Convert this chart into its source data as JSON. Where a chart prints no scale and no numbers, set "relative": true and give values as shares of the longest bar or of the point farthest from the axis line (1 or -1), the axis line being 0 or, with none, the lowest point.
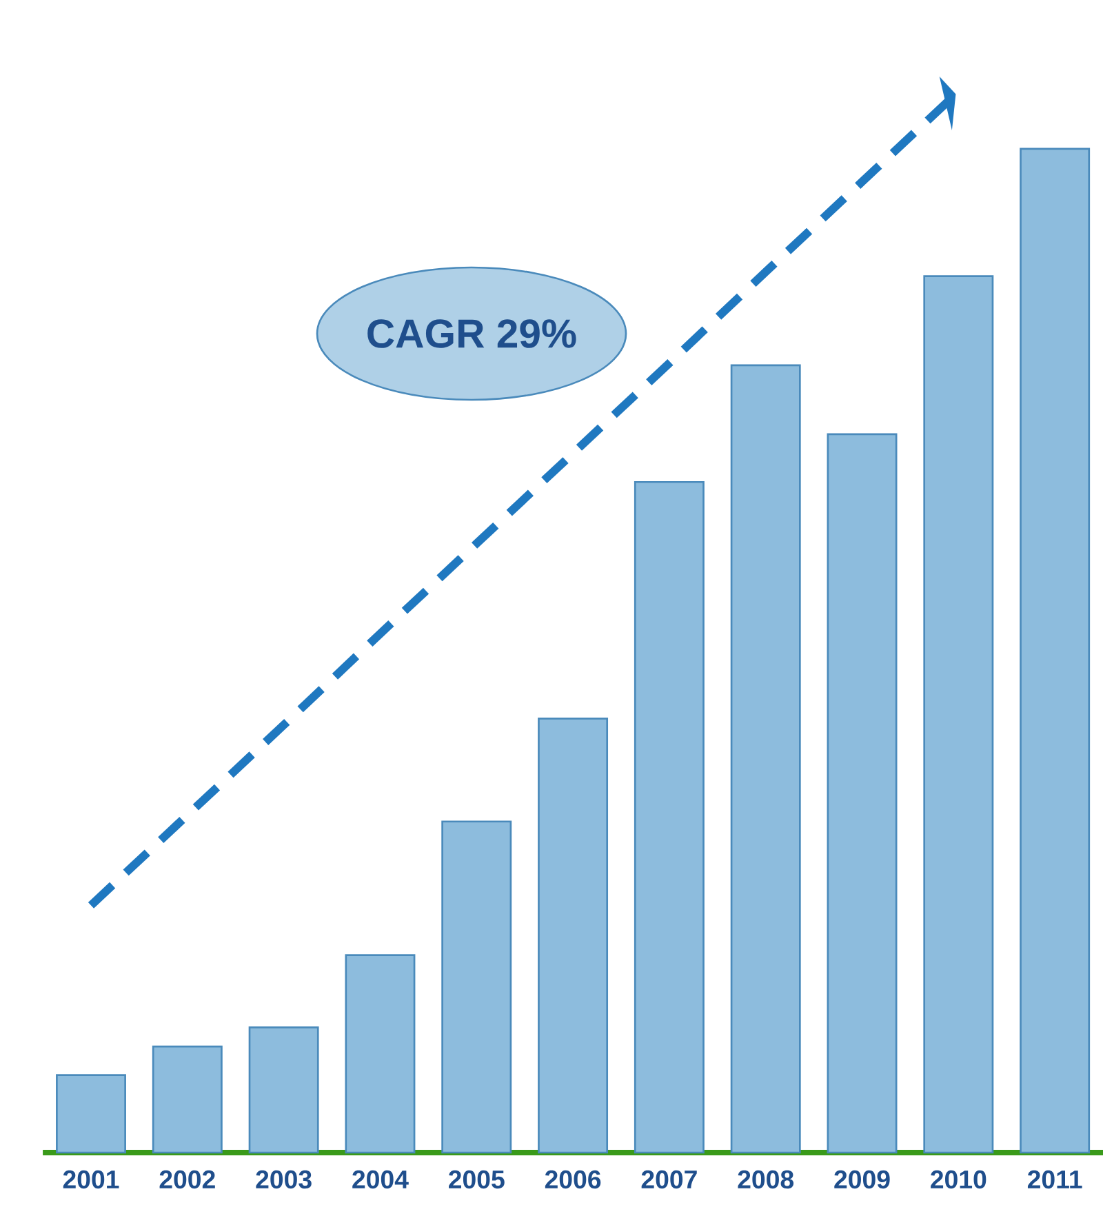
{
  "chart_data": {
    "type": "bar",
    "relative": true,
    "categories": [
      "2001",
      "2002",
      "2003",
      "2004",
      "2005",
      "2006",
      "2007",
      "2008",
      "2009",
      "2010",
      "2011"
    ],
    "series": [
      {
        "color": "#8dbcdd",
        "values": [
          0.073,
          0.1,
          0.118,
          0.186,
          0.312,
          0.409,
          0.632,
          0.742,
          0.677,
          0.826,
          0.946
        ]
      },
      {
        "type": "line",
        "color": "#1f78c0",
        "line_style": "dashed",
        "values": [
          0.233,
          0.318,
          0.403,
          0.489,
          0.574,
          0.659,
          0.744,
          0.83,
          0.915,
          1,
          null
        ]
      }
    ],
    "annotations": [
      "CAGR 29%"
    ]
  }
}
